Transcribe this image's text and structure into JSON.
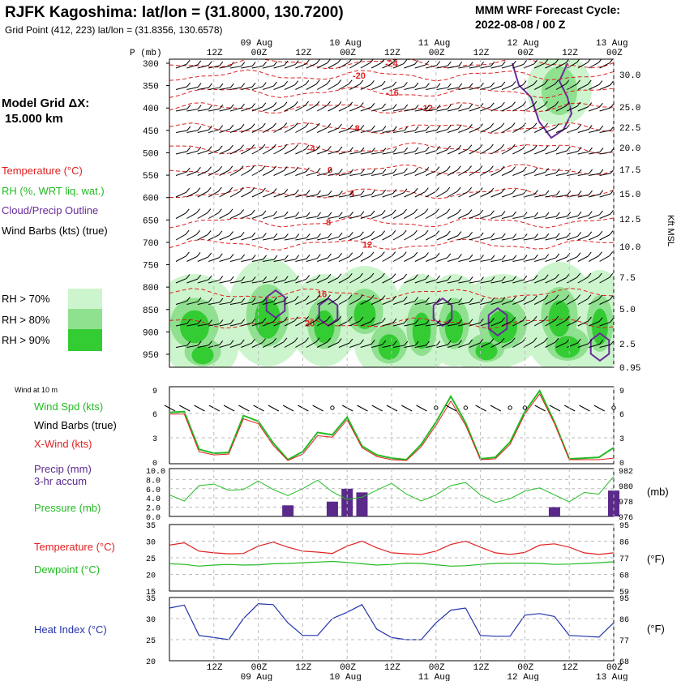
{
  "header": {
    "title": "RJFK Kagoshima:  lat/lon = (31.8000, 130.7200)",
    "subtitle": "Grid Point (412, 223) lat/lon = (31.8356, 130.6578)",
    "cycle_line1": "MMM WRF Forecast Cycle:",
    "cycle_line2": "2022-08-08 / 00  Z",
    "grid_title": "Model Grid ΔX:",
    "grid_value": "15.000 km"
  },
  "colors": {
    "temperature": "#e02020",
    "rh": "#22bb22",
    "cloud": "#6a2a9a",
    "rh70": "#cdf5cd",
    "rh80": "#8fe08f",
    "rh90": "#33cc33",
    "heat": "#2233aa"
  },
  "time_axis": {
    "top_tick_labels": [
      "12Z",
      "00Z",
      "12Z",
      "00Z",
      "12Z",
      "00Z",
      "12Z",
      "00Z",
      "12Z",
      "00Z"
    ],
    "date_labels": [
      "09 Aug",
      "10 Aug",
      "11 Aug",
      "12 Aug",
      "13 Aug"
    ]
  },
  "legend": {
    "temperature": "Temperature (°C)",
    "rh": "RH (%, WRT liq. wat.)",
    "cloud": "Cloud/Precip Outline",
    "wind_barbs": "Wind Barbs (kts) (true)",
    "rh_levels": [
      "RH > 70%",
      "RH > 80%",
      "RH > 90%"
    ]
  },
  "chart_data": [
    {
      "type": "heatmap",
      "title": "Vertical cross-section: temperature, RH, cloud outline, wind barbs",
      "ylabel": "P (mb)",
      "y_ticks": [
        300,
        350,
        400,
        450,
        500,
        550,
        600,
        650,
        700,
        750,
        800,
        850,
        900,
        950
      ],
      "ylim": [
        300,
        1000
      ],
      "right_axis_label": "Kft MSL",
      "right_ticks": [
        "30.0",
        "25.0",
        "22.5",
        "20.0",
        "17.5",
        "15.0",
        "12.5",
        "10.0",
        "7.5",
        "5.0",
        "2.5",
        "0.95"
      ],
      "isotherm_labels": [
        "-24",
        "-20",
        "-16",
        "-12",
        "-8",
        "-4",
        "0",
        "4",
        "8",
        "12",
        "16",
        "20"
      ],
      "isotherm_values": [
        -24,
        -20,
        -16,
        -12,
        -8,
        -4,
        0,
        4,
        8,
        12,
        16,
        20
      ],
      "isotherm_pressure": [
        300,
        327,
        365,
        400,
        445,
        490,
        538,
        590,
        655,
        705,
        815,
        880
      ]
    },
    {
      "type": "line",
      "title": "Wind at 10 m",
      "y_ticks": [
        "9",
        "6",
        "3",
        "0"
      ],
      "ylim": [
        0,
        9
      ],
      "series": [
        {
          "name": "Wind Spd (kts)",
          "label": "Wind Spd (kts)",
          "values": [
            6.2,
            6.3,
            1.6,
            1.1,
            1.2,
            5.8,
            5.1,
            2.4,
            0.3,
            1.3,
            3.7,
            3.4,
            5.6,
            2.0,
            0.9,
            0.5,
            0.3,
            2.2,
            5.0,
            8.2,
            4.9,
            0.4,
            0.6,
            2.5,
            6.3,
            8.9,
            5.0,
            0.4,
            0.5,
            0.6,
            1.8
          ]
        },
        {
          "name": "Wind Barbs (true)",
          "label": "Wind Barbs (true)",
          "values": []
        },
        {
          "name": "X-Wind (kts)",
          "label": "X-Wind (kts)",
          "values": [
            6.0,
            6.0,
            1.3,
            0.9,
            1.0,
            5.4,
            4.8,
            2.1,
            0.2,
            1.0,
            3.3,
            3.1,
            5.3,
            1.8,
            0.7,
            0.3,
            0.2,
            1.9,
            4.6,
            7.6,
            4.6,
            0.3,
            0.4,
            2.2,
            6.0,
            8.5,
            4.8,
            0.3,
            0.3,
            0.3,
            0.5
          ]
        }
      ],
      "calm_labels": [
        "o"
      ]
    },
    {
      "type": "bar",
      "title": "Precip and Pressure",
      "precip_label_line1": "Precip (mm)",
      "precip_label_line2": "3-hr accum",
      "pressure_label": "Pressure (mb)",
      "left_ticks": [
        "10.0",
        "8.0",
        "6.0",
        "4.0",
        "2.0",
        "0.0"
      ],
      "right_ticks": [
        "982",
        "980",
        "978",
        "976"
      ],
      "right_unit": "(mb)",
      "precip_mm": [
        0,
        0,
        0,
        0,
        0,
        0,
        0,
        0,
        0.6,
        0,
        0,
        0.8,
        1.5,
        1.3,
        0,
        0,
        0,
        0,
        0,
        0,
        0,
        0,
        0,
        0,
        0,
        0,
        0.5,
        0,
        0,
        0,
        1.4
      ],
      "pressure_mb": [
        978.8,
        978.0,
        980.0,
        980.2,
        979.4,
        979.5,
        980.6,
        979.5,
        978.7,
        979.6,
        980.7,
        979.2,
        978.2,
        978.5,
        979.4,
        980.3,
        978.9,
        978.0,
        978.8,
        980.0,
        980.4,
        978.8,
        977.8,
        978.3,
        979.3,
        979.7,
        978.8,
        977.9,
        979.1,
        978.9,
        981.2
      ]
    },
    {
      "type": "line",
      "title": "Temperature and Dewpoint",
      "left_ticks": [
        "35",
        "30",
        "25",
        "20",
        "15"
      ],
      "right_ticks": [
        "95",
        "86",
        "77",
        "68",
        "59"
      ],
      "right_unit": "(°F)",
      "ylim": [
        15,
        35
      ],
      "series": [
        {
          "name": "Temperature (°C)",
          "label": "Temperature (°C)",
          "values": [
            28.8,
            29.5,
            27.0,
            26.5,
            26.2,
            26.3,
            28.5,
            29.7,
            28.2,
            27.0,
            26.7,
            26.3,
            28.5,
            30.0,
            28.0,
            26.5,
            26.2,
            26.0,
            27.0,
            29.0,
            30.0,
            28.2,
            26.5,
            26.0,
            26.6,
            28.8,
            29.2,
            28.2,
            26.5,
            26.0,
            26.5
          ]
        },
        {
          "name": "Dewpoint (°C)",
          "label": "Dewpoint (°C)",
          "values": [
            23.2,
            23.0,
            22.5,
            22.8,
            23.0,
            22.8,
            22.9,
            23.2,
            23.3,
            23.5,
            23.7,
            23.9,
            23.6,
            23.2,
            22.8,
            23.0,
            23.4,
            23.3,
            22.9,
            22.5,
            22.6,
            23.0,
            23.3,
            23.4,
            23.4,
            23.3,
            23.0,
            23.1,
            23.3,
            23.5,
            23.8
          ]
        }
      ]
    },
    {
      "type": "line",
      "title": "Heat Index",
      "left_ticks": [
        "35",
        "30",
        "25",
        "20"
      ],
      "right_ticks": [
        "95",
        "86",
        "77",
        "68"
      ],
      "right_unit": "(°F)",
      "ylim": [
        20,
        35
      ],
      "series": [
        {
          "name": "Heat Index (°C)",
          "label": "Heat Index (°C)",
          "values": [
            32.5,
            33.2,
            26.0,
            25.5,
            25.0,
            30.0,
            33.5,
            33.3,
            29.0,
            26.0,
            26.0,
            30.0,
            31.5,
            33.3,
            27.5,
            25.5,
            25.0,
            25.0,
            29.0,
            32.0,
            32.5,
            26.0,
            25.8,
            25.8,
            30.8,
            31.2,
            30.5,
            26.0,
            25.8,
            25.6,
            29.0
          ]
        }
      ]
    }
  ]
}
